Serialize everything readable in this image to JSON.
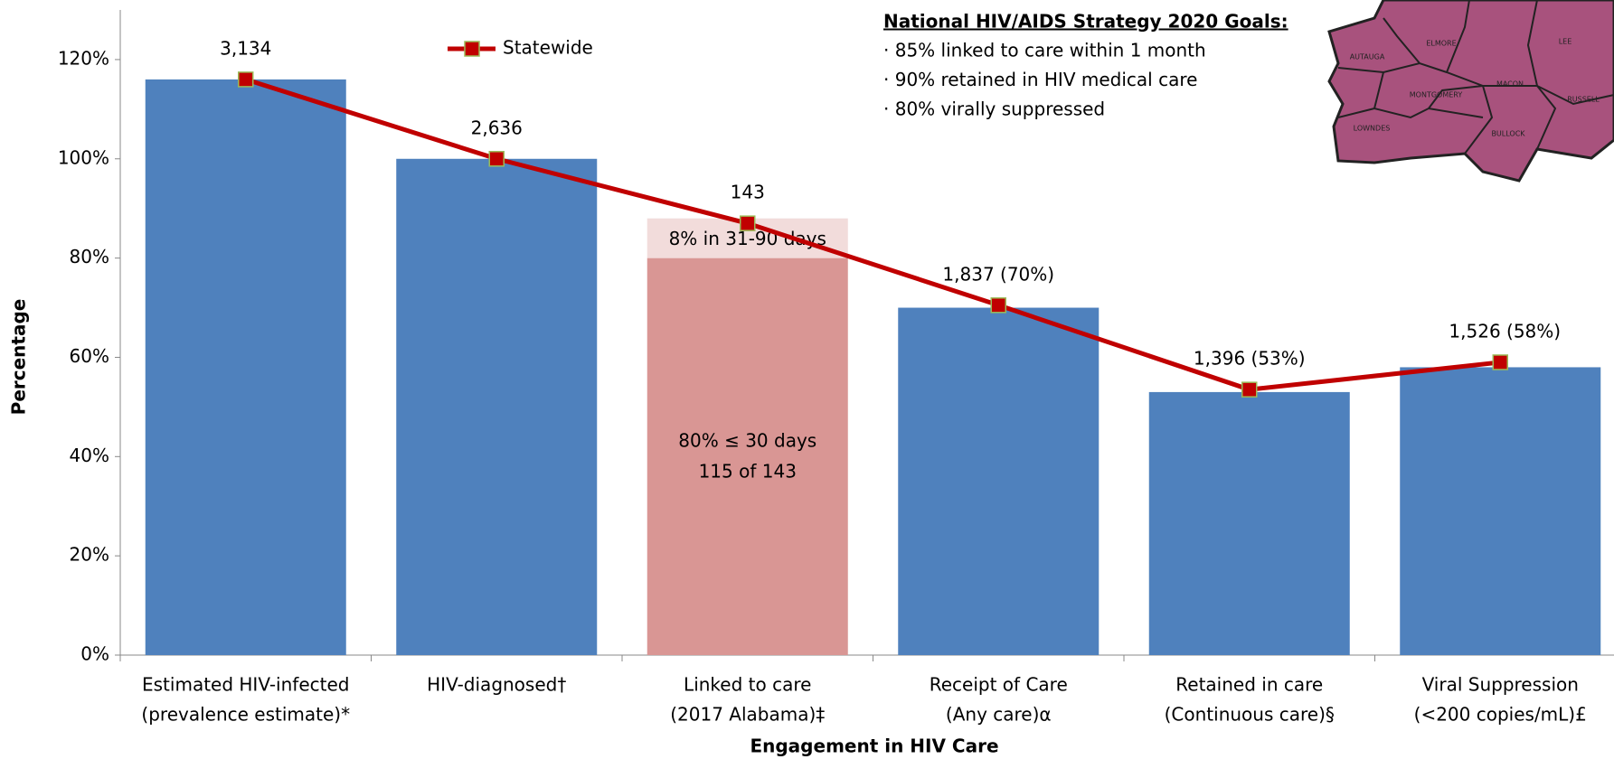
{
  "chart_data": {
    "type": "bar",
    "categories": [
      [
        "Estimated HIV-infected",
        "(prevalence estimate)*"
      ],
      [
        "HIV-diagnosed†"
      ],
      [
        "Linked to care",
        "(2017 Alabama)‡"
      ],
      [
        "Receipt of Care",
        "(Any care)α"
      ],
      [
        "Retained in care",
        "(Continuous care)§"
      ],
      [
        "Viral Suppression",
        "(<200 copies/mL)£"
      ]
    ],
    "values": [
      116,
      100,
      80,
      70,
      53,
      58
    ],
    "color": "#4f81bd",
    "highlight_index": 2,
    "highlight_color": "#d99694",
    "extra_segment": {
      "index": 2,
      "value": 8,
      "color": "#f2dcdb",
      "label": "8% in 31-90 days"
    },
    "segment_label": [
      "80% ≤ 30 days",
      "115 of 143"
    ],
    "bar_labels": [
      "3,134",
      "2,636",
      "143",
      "1,837 (70%)",
      "1,396 (53%)",
      "1,526 (58%)"
    ],
    "series": [
      {
        "name": "Statewide",
        "type": "line",
        "color": "#c00000",
        "marker_color": "#c00000",
        "marker_edge": "#9bbb59",
        "values": [
          116,
          100,
          87,
          70.5,
          53.5,
          59
        ]
      }
    ],
    "ylim": [
      0,
      130
    ],
    "yticks": [
      {
        "value": 0,
        "label": "0%"
      },
      {
        "value": 20,
        "label": "20%"
      },
      {
        "value": 40,
        "label": "40%"
      },
      {
        "value": 60,
        "label": "60%"
      },
      {
        "value": 80,
        "label": "80%"
      },
      {
        "value": 100,
        "label": "100%"
      },
      {
        "value": 120,
        "label": "120%"
      }
    ],
    "y_label": "Percentage",
    "x_label": "Engagement in HIV Care",
    "goals": {
      "title": "National HIV/AIDS Strategy 2020 Goals:",
      "items": [
        "· 85% linked to care within 1 month",
        "· 90% retained in HIV medical care",
        "· 80% virally suppressed"
      ]
    },
    "map_labels": [
      "AUTAUGA",
      "ELMORE",
      "LEE",
      "MONTGOMERY",
      "MACON",
      "RUSSELL",
      "LOWNDES",
      "BULLOCK"
    ]
  }
}
